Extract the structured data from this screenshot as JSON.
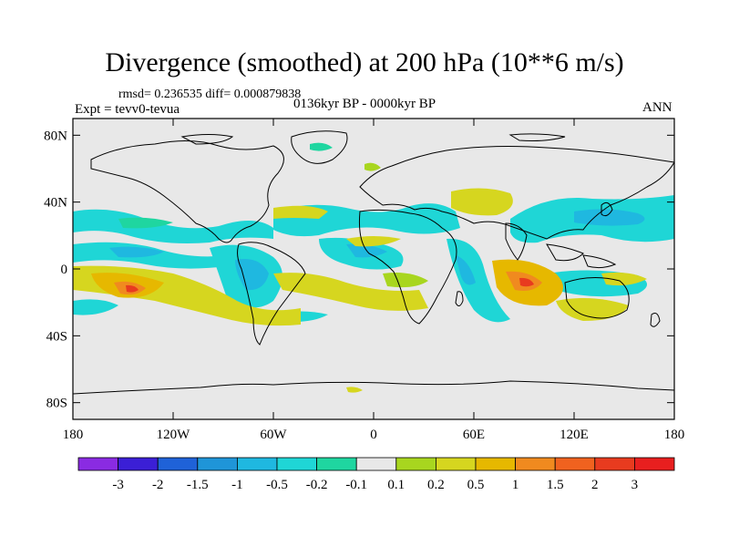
{
  "title": "Divergence (smoothed) at 200 hPa (10**6 m/s)",
  "stats": "rmsd= 0.236535  diff= 0.000879838",
  "experiment": "Expt = tevv0-tevua",
  "period": "0136kyr BP - 0000kyr BP",
  "season": "ANN",
  "axes": {
    "x_ticks": [
      "180",
      "120W",
      "60W",
      "0",
      "60E",
      "120E",
      "180"
    ],
    "y_ticks": [
      "80N",
      "40N",
      "0",
      "40S",
      "80S"
    ]
  },
  "colorbar": {
    "labels": [
      "-3",
      "-2",
      "-1.5",
      "-1",
      "-0.5",
      "-0.2",
      "-0.1",
      "0.1",
      "0.2",
      "0.5",
      "1",
      "1.5",
      "2",
      "3"
    ],
    "colors": [
      "#8a2be2",
      "#3b1fd6",
      "#1f62d8",
      "#1f95d8",
      "#1fb8e0",
      "#1fd6d6",
      "#1fd6a0",
      "#e8e8e8",
      "#a8d61f",
      "#d6d61f",
      "#e6b800",
      "#f08a1f",
      "#f0621f",
      "#e83b1f",
      "#e81f1f"
    ]
  }
}
